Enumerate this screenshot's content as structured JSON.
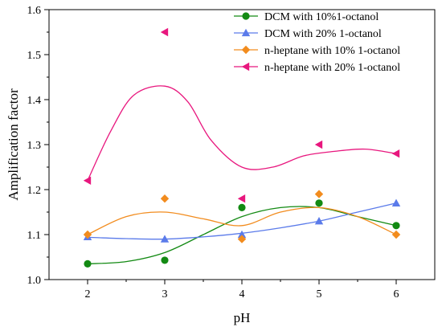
{
  "chart_data": {
    "type": "scatter",
    "xlabel": "pH",
    "ylabel": "Amplification factor",
    "xlim": [
      1.5,
      6.5
    ],
    "ylim": [
      1.0,
      1.6
    ],
    "xticks": [
      2,
      3,
      4,
      5,
      6
    ],
    "yticks": [
      1.0,
      1.1,
      1.2,
      1.3,
      1.4,
      1.5,
      1.6
    ],
    "grid": false,
    "legend_position": "top-right",
    "series": [
      {
        "name": "DCM with 10%1-octanol",
        "color": "#138a13",
        "marker": "circle",
        "x": [
          2,
          3,
          4,
          5,
          6
        ],
        "y": [
          1.035,
          1.043,
          1.16,
          1.17,
          1.12
        ],
        "curve": [
          [
            2,
            1.035
          ],
          [
            2.5,
            1.04
          ],
          [
            3,
            1.06
          ],
          [
            3.5,
            1.1
          ],
          [
            4,
            1.14
          ],
          [
            4.5,
            1.16
          ],
          [
            5,
            1.16
          ],
          [
            5.5,
            1.14
          ],
          [
            6,
            1.12
          ]
        ]
      },
      {
        "name": "DCM with 20% 1-octanol",
        "color": "#5b7bea",
        "marker": "triangle-up",
        "x": [
          2,
          3,
          4,
          5,
          6
        ],
        "y": [
          1.095,
          1.09,
          1.1,
          1.13,
          1.17
        ],
        "curve": [
          [
            2,
            1.094
          ],
          [
            2.5,
            1.091
          ],
          [
            3,
            1.09
          ],
          [
            3.5,
            1.095
          ],
          [
            4,
            1.103
          ],
          [
            4.5,
            1.115
          ],
          [
            5,
            1.13
          ],
          [
            5.5,
            1.15
          ],
          [
            6,
            1.17
          ]
        ]
      },
      {
        "name": "n-heptane with 10% 1-octanol",
        "color": "#f28c1e",
        "marker": "diamond",
        "x": [
          2,
          3,
          4,
          5,
          6
        ],
        "y": [
          1.1,
          1.18,
          1.09,
          1.19,
          1.1
        ],
        "curve": [
          [
            2,
            1.1
          ],
          [
            2.5,
            1.14
          ],
          [
            3,
            1.15
          ],
          [
            3.5,
            1.135
          ],
          [
            4,
            1.12
          ],
          [
            4.5,
            1.15
          ],
          [
            5,
            1.16
          ],
          [
            5.5,
            1.14
          ],
          [
            6,
            1.1
          ]
        ]
      },
      {
        "name": "n-heptane with 20% 1-octanol",
        "color": "#e8177e",
        "marker": "triangle-left",
        "x": [
          2,
          3,
          4,
          5,
          6
        ],
        "y": [
          1.22,
          1.55,
          1.18,
          1.3,
          1.28
        ],
        "curve": [
          [
            2,
            1.22
          ],
          [
            2.3,
            1.33
          ],
          [
            2.6,
            1.41
          ],
          [
            3,
            1.43
          ],
          [
            3.3,
            1.395
          ],
          [
            3.6,
            1.31
          ],
          [
            4,
            1.25
          ],
          [
            4.4,
            1.25
          ],
          [
            4.8,
            1.275
          ],
          [
            5.2,
            1.285
          ],
          [
            5.6,
            1.29
          ],
          [
            6,
            1.28
          ]
        ]
      }
    ]
  }
}
